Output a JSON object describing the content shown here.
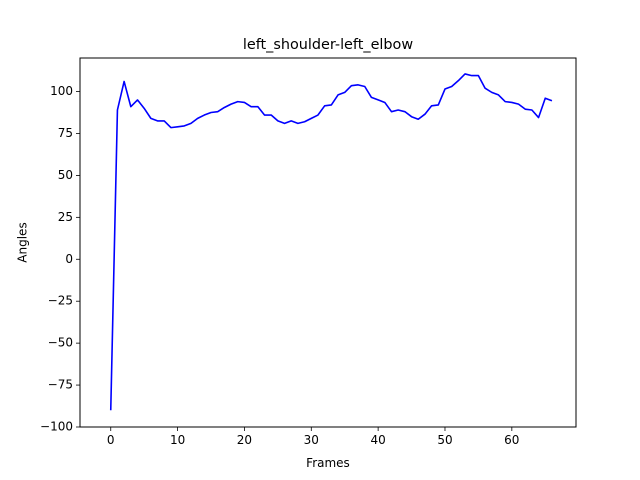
{
  "chart_data": {
    "type": "line",
    "title": "left_shoulder-left_elbow",
    "xlabel": "Frames",
    "ylabel": "Angles",
    "xlim": [
      -4.6,
      69.6
    ],
    "ylim": [
      -100,
      120
    ],
    "xticks": [
      0,
      10,
      20,
      30,
      40,
      50,
      60
    ],
    "yticks": [
      -100,
      -75,
      -50,
      -25,
      0,
      25,
      50,
      75,
      100
    ],
    "grid": false,
    "series": [
      {
        "color": "#0000ff",
        "x": [
          0,
          1,
          2,
          3,
          4,
          5,
          6,
          7,
          8,
          9,
          10,
          11,
          12,
          13,
          14,
          15,
          16,
          17,
          18,
          19,
          20,
          21,
          22,
          23,
          24,
          25,
          26,
          27,
          28,
          29,
          30,
          31,
          32,
          33,
          34,
          35,
          36,
          37,
          38,
          39,
          40,
          41,
          42,
          43,
          44,
          45,
          46,
          47,
          48,
          49,
          50,
          51,
          52,
          53,
          54,
          55,
          56,
          57,
          58,
          59,
          60,
          61,
          62,
          63,
          64,
          65,
          66
        ],
        "y": [
          -90,
          89,
          106,
          91,
          95,
          90,
          84,
          82.5,
          82.5,
          78.5,
          79,
          79.5,
          81,
          84,
          86,
          87.5,
          88,
          90.5,
          92.5,
          94,
          93.5,
          91,
          91,
          86,
          86,
          82.5,
          81,
          82.5,
          81,
          82,
          84,
          86,
          91.5,
          92,
          98,
          99.5,
          103.5,
          104,
          103,
          96.5,
          95,
          93.5,
          88,
          89,
          88,
          85,
          83.5,
          86.5,
          91.5,
          92,
          101.5,
          103,
          106.5,
          110.5,
          109.5,
          109.5,
          102,
          99.5,
          98,
          94,
          93.5,
          92.5,
          89.5,
          89,
          84.5,
          96,
          94.5
        ]
      }
    ]
  }
}
